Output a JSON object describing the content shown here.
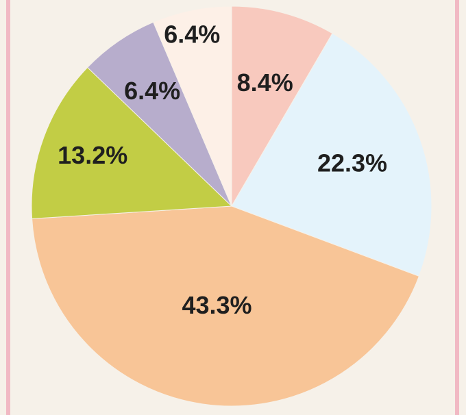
{
  "chart_data": {
    "type": "pie",
    "start": "top",
    "direction": "clockwise",
    "slices": [
      {
        "label": "8.4%",
        "value": 8.4,
        "color": "#f8c9be"
      },
      {
        "label": "22.3%",
        "value": 22.3,
        "color": "#e4f3fb"
      },
      {
        "label": "43.3%",
        "value": 43.3,
        "color": "#f8c597"
      },
      {
        "label": "13.2%",
        "value": 13.2,
        "color": "#c2cd45"
      },
      {
        "label": "6.4%",
        "value": 6.4,
        "color": "#b7adcc"
      },
      {
        "label": "6.4%",
        "value": 6.4,
        "color": "#fdf0e7"
      }
    ],
    "title": "",
    "legend": "none"
  },
  "colors": {
    "background": "#f6f1e9",
    "frame_border": "#f1b9c4"
  }
}
